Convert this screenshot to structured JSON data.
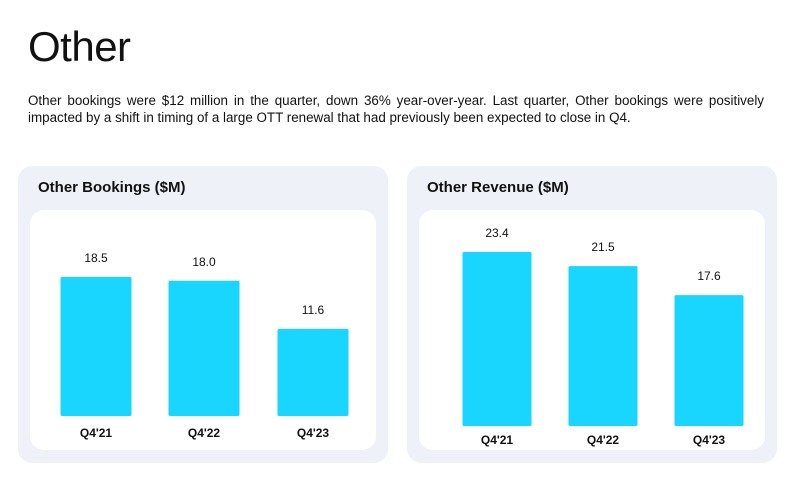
{
  "page": {
    "title": "Other",
    "intro": "Other bookings were $12 million in the quarter, down 36% year-over-year. Last quarter, Other bookings were positively impacted by a shift in timing of a large OTT renewal that had previously been expected to close in Q4."
  },
  "colors": {
    "bar": "#18d6ff",
    "card_bg": "#eef2f8",
    "card_inner": "#ffffff"
  },
  "chart_data": [
    {
      "type": "bar",
      "title": "Other Bookings ($M)",
      "categories": [
        "Q4'21",
        "Q4'22",
        "Q4'23"
      ],
      "values": [
        18.5,
        18.0,
        11.6
      ],
      "value_labels": [
        "18.5",
        "18.0",
        "11.6"
      ],
      "xlabel": "",
      "ylabel": "",
      "ylim": [
        0,
        22.1
      ],
      "grid": false,
      "legend": "none"
    },
    {
      "type": "bar",
      "title": "Other Revenue ($M)",
      "categories": [
        "Q4'21",
        "Q4'22",
        "Q4'23"
      ],
      "values": [
        23.4,
        21.5,
        17.6
      ],
      "value_labels": [
        "23.4",
        "21.5",
        "17.6"
      ],
      "xlabel": "",
      "ylabel": "",
      "ylim": [
        0,
        23.4
      ],
      "grid": false,
      "legend": "none"
    }
  ]
}
